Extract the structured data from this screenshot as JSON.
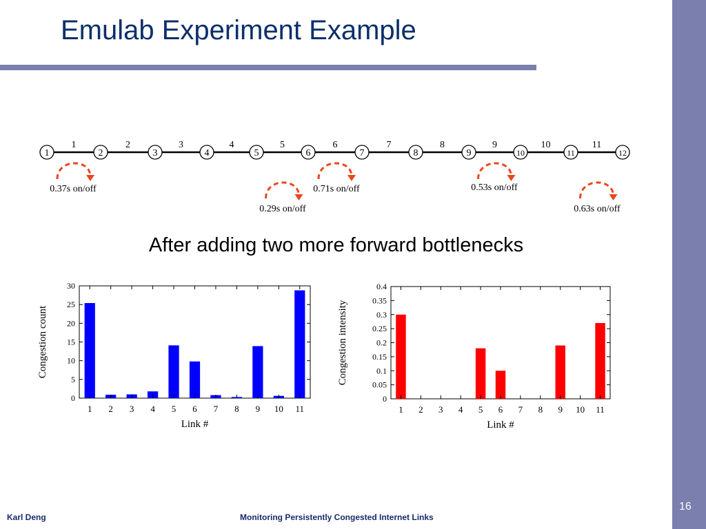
{
  "slide": {
    "title": "Emulab Experiment Example",
    "subtitle": "After adding two more forward bottlenecks",
    "author": "Karl Deng",
    "footer": "Monitoring Persistently Congested Internet Links",
    "page": "16"
  },
  "colors": {
    "accent_bar": "#7b7fae",
    "title": "#0b2f6b",
    "left_bars": "#0000ff",
    "right_bars": "#ff0000",
    "arrows": "#e8461e"
  },
  "topology": {
    "nodes": [
      "1",
      "2",
      "3",
      "4",
      "5",
      "6",
      "7",
      "8",
      "9",
      "10",
      "11",
      "12"
    ],
    "links": [
      "1",
      "2",
      "3",
      "4",
      "5",
      "6",
      "7",
      "8",
      "9",
      "10",
      "11"
    ],
    "annotations": [
      {
        "link": 1,
        "label": "0.37s on/off"
      },
      {
        "link": 5,
        "label": "0.29s on/off"
      },
      {
        "link": 6,
        "label": "0.71s on/off"
      },
      {
        "link": 9,
        "label": "0.53s on/off"
      },
      {
        "link": 11,
        "label": "0.63s on/off"
      }
    ]
  },
  "chart_data": [
    {
      "type": "bar",
      "categories": [
        "1",
        "2",
        "3",
        "4",
        "5",
        "6",
        "7",
        "8",
        "9",
        "10",
        "11"
      ],
      "values": [
        25.4,
        0.9,
        1.0,
        1.8,
        14.1,
        9.8,
        0.8,
        0.3,
        13.9,
        0.6,
        28.8
      ],
      "xlabel": "Link #",
      "ylabel": "Congestion count",
      "ylim": [
        0,
        30
      ],
      "yticks": [
        "0",
        "5",
        "10",
        "15",
        "20",
        "25",
        "30"
      ],
      "color": "#0000ff",
      "grid": false
    },
    {
      "type": "bar",
      "categories": [
        "1",
        "2",
        "3",
        "4",
        "5",
        "6",
        "7",
        "8",
        "9",
        "10",
        "11"
      ],
      "values": [
        0.3,
        0,
        0,
        0,
        0.18,
        0.1,
        0,
        0,
        0.19,
        0,
        0.27
      ],
      "xlabel": "Link #",
      "ylabel": "Congestion intensity",
      "ylim": [
        0,
        0.4
      ],
      "yticks": [
        "0",
        "0.05",
        "0.1",
        "0.15",
        "0.2",
        "0.25",
        "0.3",
        "0.35",
        "0.4"
      ],
      "color": "#ff0000",
      "grid": false
    }
  ]
}
